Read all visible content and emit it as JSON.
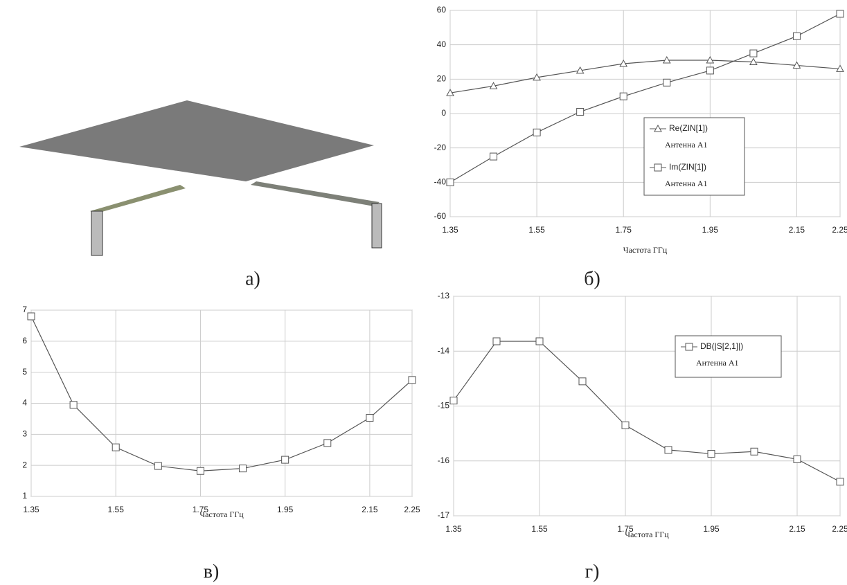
{
  "captions": [
    "а)",
    "б)",
    "в)",
    "г)"
  ],
  "chart_data": [
    {
      "type": "line",
      "x": [
        1.35,
        1.45,
        1.55,
        1.65,
        1.75,
        1.85,
        1.95,
        2.05,
        2.15,
        2.25
      ],
      "xlim": [
        1.35,
        2.25
      ],
      "xticks": [
        1.35,
        1.55,
        1.75,
        1.95,
        2.15,
        2.25
      ],
      "ylim": [
        -60,
        60
      ],
      "yticks": [
        -60,
        -40,
        -20,
        0,
        20,
        40,
        60
      ],
      "grid": true,
      "xlabel": "Частота ГГц",
      "series": [
        {
          "name": "Re(ZIN[1])",
          "subtitle": "Антенна А1",
          "marker": "triangle",
          "color": "#555555",
          "values": [
            12,
            16,
            21,
            25,
            29,
            31,
            31,
            30,
            28,
            26
          ]
        },
        {
          "name": "Im(ZIN[1])",
          "subtitle": "Антенна А1",
          "marker": "square",
          "color": "#555555",
          "values": [
            -40,
            -25,
            -11,
            1,
            10,
            18,
            25,
            35,
            45,
            58
          ]
        }
      ]
    },
    {
      "type": "line",
      "x": [
        1.35,
        1.45,
        1.55,
        1.65,
        1.75,
        1.85,
        1.95,
        2.05,
        2.15,
        2.25
      ],
      "xlim": [
        1.35,
        2.25
      ],
      "xticks": [
        1.35,
        1.55,
        1.75,
        1.95,
        2.15,
        2.25
      ],
      "ylim": [
        1,
        7
      ],
      "yticks": [
        1,
        2,
        3,
        4,
        5,
        6,
        7
      ],
      "grid": true,
      "xlabel": "Частота ГГц",
      "series": [
        {
          "marker": "square",
          "color": "#555555",
          "values": [
            6.8,
            3.95,
            2.58,
            1.98,
            1.82,
            1.9,
            2.18,
            2.72,
            3.53,
            4.75
          ]
        }
      ]
    },
    {
      "type": "line",
      "x": [
        1.35,
        1.45,
        1.55,
        1.65,
        1.75,
        1.85,
        1.95,
        2.05,
        2.15,
        2.25
      ],
      "xlim": [
        1.35,
        2.25
      ],
      "xticks": [
        1.35,
        1.55,
        1.75,
        1.95,
        2.15,
        2.25
      ],
      "ylim": [
        -17,
        -13
      ],
      "yticks": [
        -17,
        -16,
        -15,
        -14,
        -13
      ],
      "grid": true,
      "xlabel": "Частота ГГц",
      "series": [
        {
          "name": "DB(|S[2,1]|)",
          "subtitle": "Антенна А1",
          "marker": "square",
          "color": "#555555",
          "values": [
            -14.9,
            -13.82,
            -13.82,
            -14.55,
            -15.35,
            -15.8,
            -15.87,
            -15.83,
            -15.97,
            -16.38
          ]
        }
      ]
    }
  ]
}
